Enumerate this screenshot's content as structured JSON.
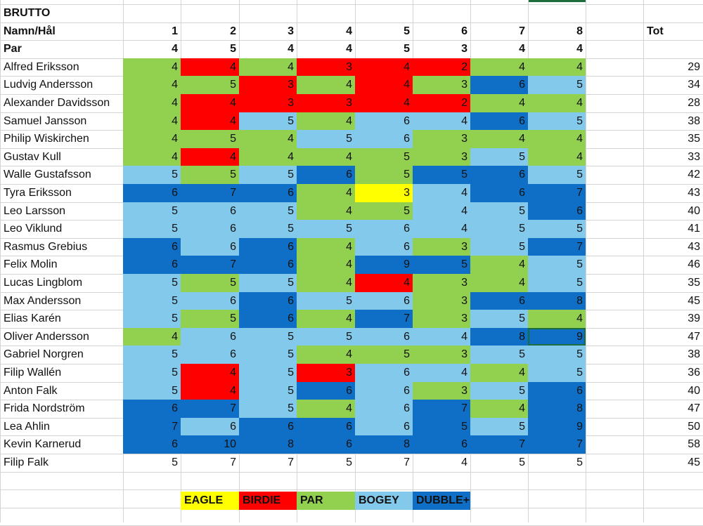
{
  "sheet_title": "BRUTTO",
  "header": {
    "label": "Namn/Hål",
    "holes": [
      "1",
      "2",
      "3",
      "4",
      "5",
      "6",
      "7",
      "8"
    ],
    "total_label": "Tot"
  },
  "par_row": {
    "label": "Par",
    "values": [
      "4",
      "5",
      "4",
      "4",
      "5",
      "3",
      "4",
      "4"
    ]
  },
  "colors": {
    "eagle": "#ffff00",
    "birdie": "#ff0000",
    "par": "#92d050",
    "bogey": "#83c9eb",
    "double": "#0f6fc6"
  },
  "players": [
    {
      "name": "Alfred Eriksson",
      "scores": [
        "4",
        "4",
        "4",
        "3",
        "4",
        "2",
        "4",
        "4"
      ],
      "cats": [
        "par",
        "birdie",
        "par",
        "birdie",
        "birdie",
        "birdie",
        "par",
        "par"
      ],
      "total": "29"
    },
    {
      "name": "Ludvig Andersson",
      "scores": [
        "4",
        "5",
        "3",
        "4",
        "4",
        "3",
        "6",
        "5"
      ],
      "cats": [
        "par",
        "par",
        "birdie",
        "par",
        "birdie",
        "par",
        "double",
        "bogey"
      ],
      "total": "34"
    },
    {
      "name": "Alexander Davidsson",
      "scores": [
        "4",
        "4",
        "3",
        "3",
        "4",
        "2",
        "4",
        "4"
      ],
      "cats": [
        "par",
        "birdie",
        "birdie",
        "birdie",
        "birdie",
        "birdie",
        "par",
        "par"
      ],
      "total": "28"
    },
    {
      "name": "Samuel Jansson",
      "scores": [
        "4",
        "4",
        "5",
        "4",
        "6",
        "4",
        "6",
        "5"
      ],
      "cats": [
        "par",
        "birdie",
        "bogey",
        "par",
        "bogey",
        "bogey",
        "double",
        "bogey"
      ],
      "total": "38"
    },
    {
      "name": "Philip Wiskirchen",
      "scores": [
        "4",
        "5",
        "4",
        "5",
        "6",
        "3",
        "4",
        "4"
      ],
      "cats": [
        "par",
        "par",
        "par",
        "bogey",
        "bogey",
        "par",
        "par",
        "par"
      ],
      "total": "35"
    },
    {
      "name": "Gustav Kull",
      "scores": [
        "4",
        "4",
        "4",
        "4",
        "5",
        "3",
        "5",
        "4"
      ],
      "cats": [
        "par",
        "birdie",
        "par",
        "par",
        "par",
        "par",
        "bogey",
        "par"
      ],
      "total": "33"
    },
    {
      "name": "Walle Gustafsson",
      "scores": [
        "5",
        "5",
        "5",
        "6",
        "5",
        "5",
        "6",
        "5"
      ],
      "cats": [
        "bogey",
        "par",
        "bogey",
        "double",
        "par",
        "double",
        "double",
        "bogey"
      ],
      "total": "42"
    },
    {
      "name": "Tyra Eriksson",
      "scores": [
        "6",
        "7",
        "6",
        "4",
        "3",
        "4",
        "6",
        "7"
      ],
      "cats": [
        "double",
        "double",
        "double",
        "par",
        "eagle",
        "bogey",
        "double",
        "double"
      ],
      "total": "43"
    },
    {
      "name": "Leo Larsson",
      "scores": [
        "5",
        "6",
        "5",
        "4",
        "5",
        "4",
        "5",
        "6"
      ],
      "cats": [
        "bogey",
        "bogey",
        "bogey",
        "par",
        "par",
        "bogey",
        "bogey",
        "double"
      ],
      "total": "40"
    },
    {
      "name": "Leo Viklund",
      "scores": [
        "5",
        "6",
        "5",
        "5",
        "6",
        "4",
        "5",
        "5"
      ],
      "cats": [
        "bogey",
        "bogey",
        "bogey",
        "bogey",
        "bogey",
        "bogey",
        "bogey",
        "bogey"
      ],
      "total": "41"
    },
    {
      "name": "Rasmus Grebius",
      "scores": [
        "6",
        "6",
        "6",
        "4",
        "6",
        "3",
        "5",
        "7"
      ],
      "cats": [
        "double",
        "bogey",
        "double",
        "par",
        "bogey",
        "par",
        "bogey",
        "double"
      ],
      "total": "43"
    },
    {
      "name": "Felix Molin",
      "scores": [
        "6",
        "7",
        "6",
        "4",
        "9",
        "5",
        "4",
        "5"
      ],
      "cats": [
        "double",
        "double",
        "double",
        "par",
        "double",
        "double",
        "par",
        "bogey"
      ],
      "total": "46"
    },
    {
      "name": "Lucas Lingblom",
      "scores": [
        "5",
        "5",
        "5",
        "4",
        "4",
        "3",
        "4",
        "5"
      ],
      "cats": [
        "bogey",
        "par",
        "bogey",
        "par",
        "birdie",
        "par",
        "par",
        "bogey"
      ],
      "total": "35"
    },
    {
      "name": "Max Andersson",
      "scores": [
        "5",
        "6",
        "6",
        "5",
        "6",
        "3",
        "6",
        "8"
      ],
      "cats": [
        "bogey",
        "bogey",
        "double",
        "bogey",
        "bogey",
        "par",
        "double",
        "double"
      ],
      "total": "45"
    },
    {
      "name": "Elias Karén",
      "scores": [
        "5",
        "5",
        "6",
        "4",
        "7",
        "3",
        "5",
        "4"
      ],
      "cats": [
        "bogey",
        "par",
        "double",
        "par",
        "double",
        "par",
        "bogey",
        "par"
      ],
      "total": "39"
    },
    {
      "name": "Oliver Andersson",
      "scores": [
        "4",
        "6",
        "5",
        "5",
        "6",
        "4",
        "8",
        "9"
      ],
      "cats": [
        "par",
        "bogey",
        "bogey",
        "bogey",
        "bogey",
        "bogey",
        "double",
        "double"
      ],
      "total": "47"
    },
    {
      "name": "Gabriel Norgren",
      "scores": [
        "5",
        "6",
        "5",
        "4",
        "5",
        "3",
        "5",
        "5"
      ],
      "cats": [
        "bogey",
        "bogey",
        "bogey",
        "par",
        "par",
        "par",
        "bogey",
        "bogey"
      ],
      "total": "38"
    },
    {
      "name": "Filip Wallén",
      "scores": [
        "5",
        "4",
        "5",
        "3",
        "6",
        "4",
        "4",
        "5"
      ],
      "cats": [
        "bogey",
        "birdie",
        "bogey",
        "birdie",
        "bogey",
        "bogey",
        "par",
        "bogey"
      ],
      "total": "36"
    },
    {
      "name": "Anton Falk",
      "scores": [
        "5",
        "4",
        "5",
        "6",
        "6",
        "3",
        "5",
        "6"
      ],
      "cats": [
        "bogey",
        "birdie",
        "bogey",
        "double",
        "bogey",
        "par",
        "bogey",
        "double"
      ],
      "total": "40"
    },
    {
      "name": "Frida Nordström",
      "scores": [
        "6",
        "7",
        "5",
        "4",
        "6",
        "7",
        "4",
        "8"
      ],
      "cats": [
        "double",
        "double",
        "bogey",
        "par",
        "bogey",
        "double",
        "par",
        "double"
      ],
      "total": "47"
    },
    {
      "name": "Lea Ahlin",
      "scores": [
        "7",
        "6",
        "6",
        "6",
        "6",
        "5",
        "5",
        "9"
      ],
      "cats": [
        "double",
        "bogey",
        "double",
        "double",
        "bogey",
        "double",
        "bogey",
        "double"
      ],
      "total": "50"
    },
    {
      "name": "Kevin Karnerud",
      "scores": [
        "6",
        "10",
        "8",
        "6",
        "8",
        "6",
        "7",
        "7"
      ],
      "cats": [
        "double",
        "double",
        "double",
        "double",
        "double",
        "double",
        "double",
        "double"
      ],
      "total": "58"
    },
    {
      "name": "Filip Falk",
      "scores": [
        "5",
        "7",
        "7",
        "5",
        "7",
        "4",
        "5",
        "5"
      ],
      "cats": [
        "none",
        "none",
        "none",
        "none",
        "none",
        "none",
        "none",
        "none"
      ],
      "total": "45"
    }
  ],
  "legend": [
    {
      "label": "EAGLE",
      "cat": "eagle"
    },
    {
      "label": "BIRDIE",
      "cat": "birdie"
    },
    {
      "label": "PAR",
      "cat": "par"
    },
    {
      "label": "BOGEY",
      "cat": "bogey"
    },
    {
      "label": "DUBBLE+",
      "cat": "double"
    }
  ]
}
